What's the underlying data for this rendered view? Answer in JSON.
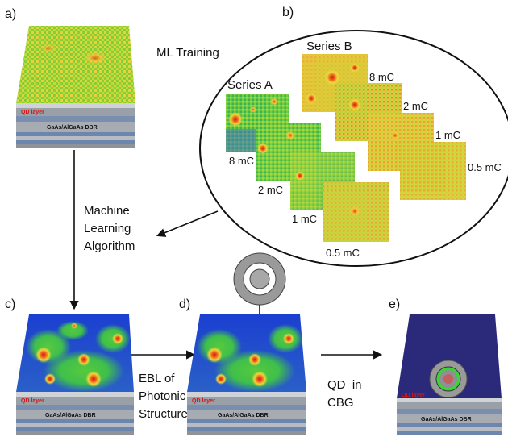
{
  "panels": {
    "a": "a)",
    "b": "b)",
    "c": "c)",
    "d": "d)",
    "e": "e)"
  },
  "training": {
    "title": "ML Training",
    "series_a": "Series A",
    "series_b": "Series B",
    "series_a_doses": [
      "8 mC",
      "2 mC",
      "1 mC",
      "0.5 mC"
    ],
    "series_b_doses": [
      "8 mC",
      "2 mC",
      "1 mC",
      "0.5 mC"
    ]
  },
  "algorithm": [
    "Machine",
    "Learning",
    "Algorithm"
  ],
  "ebl": [
    "EBL of",
    "Photonic",
    "Structure"
  ],
  "qd_cbg": [
    "QD  in",
    "CBG"
  ],
  "layers": {
    "qd": "QD layer",
    "dbr": "GaAs/AlGaAs DBR"
  },
  "colors": {
    "map_green": "#5fc83c",
    "map_yellow": "#e8e040",
    "map_red": "#e03a1a",
    "map_blue": "#2040c8",
    "cbg_purple": "#2a2a78",
    "dbr_gray": "#8a8f96",
    "dbr_blue": "#5e7fa8"
  }
}
